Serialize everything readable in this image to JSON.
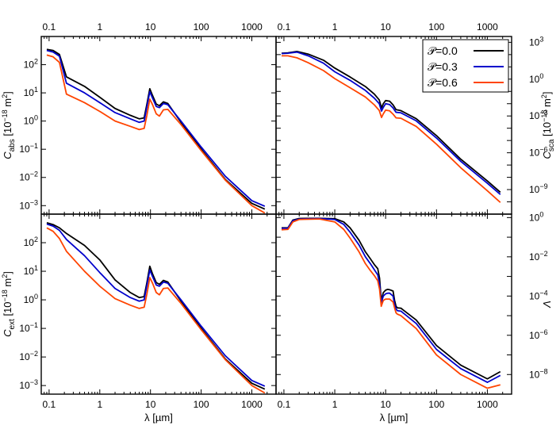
{
  "chart_data": {
    "type": "line",
    "x_scale": "log",
    "y_scale": "log",
    "xlim": [
      0.07,
      3000
    ],
    "top_tick_labels": [
      "0.1",
      "1",
      "10",
      "100",
      "1000"
    ],
    "bottom_tick_labels": [
      "0.1",
      "1",
      "10",
      "100",
      "1000"
    ],
    "bottom_xlabel": "λ [µm]",
    "series_names": [
      "𝒫=0.0",
      "𝒫=0.3",
      "𝒫=0.6"
    ],
    "colors": {
      "P0": "#000000",
      "P3": "#0000cc",
      "P6": "#ff4400"
    },
    "legend_placement": "top-right of upper-right panel",
    "panels": [
      {
        "id": "abs",
        "ylabel_main": "C",
        "ylabel_sub": "abs",
        "ylabel_unit": " [10",
        "ylabel_exp": "−18",
        "ylabel_unit2": " m",
        "ylabel_sq": "2",
        "ylabel_close": "]",
        "y_side": "left",
        "ylim": [
          0.0005,
          1000
        ],
        "yticks": [
          0.001,
          0.01,
          0.1,
          1,
          10,
          100
        ],
        "yticklabels": [
          "10",
          "10",
          "10",
          "10",
          "10",
          "10"
        ],
        "yticksup": [
          "−3",
          "−2",
          "−1",
          "0",
          "1",
          "2"
        ],
        "series": [
          {
            "name": "𝒫=0.0",
            "x": [
              0.09,
              0.12,
              0.16,
              0.22,
              0.5,
              1,
              2,
              4,
              6,
              7.5,
              8.5,
              9.7,
              11,
              13,
              15,
              18,
              22,
              40,
              100,
              300,
              1000,
              1800
            ],
            "y": [
              350,
              320,
              230,
              37,
              17,
              7,
              2.8,
              1.6,
              1.2,
              1.3,
              4,
              14,
              8,
              4,
              3.5,
              4.8,
              4.2,
              0.9,
              0.1,
              0.0085,
              0.0012,
              0.00075
            ]
          },
          {
            "name": "𝒫=0.3",
            "x": [
              0.09,
              0.12,
              0.16,
              0.22,
              0.5,
              1,
              2,
              4,
              6,
              7.5,
              8.5,
              9.7,
              11,
              13,
              15,
              18,
              22,
              40,
              100,
              300,
              1000,
              1800
            ],
            "y": [
              320,
              280,
              200,
              22,
              10,
              4.5,
              2,
              1.2,
              0.9,
              1,
              3.2,
              11,
              6.5,
              3.3,
              3,
              4.2,
              3.8,
              1,
              0.12,
              0.011,
              0.0015,
              0.00095
            ]
          },
          {
            "name": "𝒫=0.6",
            "x": [
              0.09,
              0.12,
              0.16,
              0.22,
              0.5,
              1,
              2,
              4,
              6,
              7.5,
              8.5,
              9.7,
              11,
              13,
              15,
              18,
              22,
              40,
              100,
              300,
              1000,
              1800
            ],
            "y": [
              220,
              190,
              120,
              9,
              4.5,
              2.2,
              1,
              0.65,
              0.5,
              0.55,
              1.6,
              6,
              3.8,
              1.8,
              1.5,
              2.5,
              2.6,
              0.75,
              0.09,
              0.008,
              0.001,
              0.00055
            ]
          }
        ]
      },
      {
        "id": "sca",
        "ylabel_main": "C",
        "ylabel_sub": "sca",
        "ylabel_unit": " [10",
        "ylabel_exp": "−18",
        "ylabel_unit2": " m",
        "ylabel_sq": "2",
        "ylabel_close": "]",
        "y_side": "right",
        "ylim": [
          1e-11,
          3000
        ],
        "yticks": [
          1e-09,
          1e-06,
          0.001,
          1,
          1000
        ],
        "yticklabels": [
          "10",
          "10",
          "10",
          "10",
          "10"
        ],
        "yticksup": [
          "−9",
          "−6",
          "−3",
          "0",
          "3"
        ],
        "series": [
          {
            "name": "𝒫=0.0",
            "x": [
              0.09,
              0.12,
              0.18,
              0.3,
              0.6,
              1,
              2,
              4,
              6,
              7.5,
              8.3,
              9,
              10,
              12,
              14,
              16,
              20,
              40,
              100,
              300,
              1000,
              1800
            ],
            "y": [
              130,
              140,
              180,
              110,
              35,
              8,
              1.5,
              0.25,
              0.06,
              0.02,
              0.0045,
              0.01,
              0.018,
              0.016,
              0.008,
              0.0033,
              0.0027,
              0.0006,
              2.5e-05,
              3e-07,
              5e-09,
              6e-10
            ]
          },
          {
            "name": "𝒫=0.3",
            "x": [
              0.09,
              0.12,
              0.18,
              0.3,
              0.6,
              1,
              2,
              4,
              6,
              7.5,
              8.3,
              9,
              10,
              12,
              14,
              16,
              20,
              40,
              100,
              300,
              1000,
              1800
            ],
            "y": [
              120,
              130,
              160,
              80,
              20,
              4,
              0.8,
              0.12,
              0.028,
              0.01,
              0.0025,
              0.005,
              0.01,
              0.0085,
              0.0045,
              0.002,
              0.0018,
              0.0004,
              1.6e-05,
              2e-07,
              3.3e-09,
              4e-10
            ]
          },
          {
            "name": "𝒫=0.6",
            "x": [
              0.09,
              0.12,
              0.18,
              0.3,
              0.6,
              1,
              2,
              4,
              6,
              7.5,
              8.3,
              9,
              10,
              12,
              14,
              16,
              20,
              40,
              100,
              300,
              1000,
              1800
            ],
            "y": [
              80,
              80,
              55,
              22,
              5,
              1.1,
              0.2,
              0.035,
              0.008,
              0.0028,
              0.00075,
              0.0015,
              0.003,
              0.0026,
              0.0014,
              0.0007,
              0.00065,
              0.00014,
              5e-06,
              6e-08,
              8e-10,
              9e-11
            ]
          }
        ]
      },
      {
        "id": "ext",
        "ylabel_main": "C",
        "ylabel_sub": "ext",
        "ylabel_unit": " [10",
        "ylabel_exp": "−18",
        "ylabel_unit2": " m",
        "ylabel_sq": "2",
        "ylabel_close": "]",
        "y_side": "left",
        "ylim": [
          0.0005,
          1000
        ],
        "yticks": [
          0.001,
          0.01,
          0.1,
          1,
          10,
          100
        ],
        "yticklabels": [
          "10",
          "10",
          "10",
          "10",
          "10",
          "10"
        ],
        "yticksup": [
          "−3",
          "−2",
          "−1",
          "0",
          "1",
          "2"
        ],
        "series": [
          {
            "name": "𝒫=0.0",
            "x": [
              0.09,
              0.12,
              0.16,
              0.22,
              0.5,
              1,
              2,
              4,
              6,
              7.5,
              8.5,
              9.7,
              11,
              13,
              15,
              18,
              22,
              40,
              100,
              300,
              1000,
              1800
            ],
            "y": [
              500,
              430,
              330,
              210,
              80,
              25,
              5,
              1.8,
              1.2,
              1.3,
              4,
              15,
              8,
              4,
              3.5,
              4.8,
              4.2,
              0.9,
              0.1,
              0.0085,
              0.0012,
              0.00075
            ]
          },
          {
            "name": "𝒫=0.3",
            "x": [
              0.09,
              0.12,
              0.16,
              0.22,
              0.5,
              1,
              2,
              4,
              6,
              7.5,
              8.5,
              9.7,
              11,
              13,
              15,
              18,
              22,
              40,
              100,
              300,
              1000,
              1800
            ],
            "y": [
              450,
              380,
              270,
              130,
              35,
              9,
              2.5,
              1.2,
              0.9,
              1,
              3.2,
              11,
              6.5,
              3.3,
              3,
              4.2,
              3.8,
              1,
              0.12,
              0.011,
              0.0015,
              0.00095
            ]
          },
          {
            "name": "𝒫=0.6",
            "x": [
              0.09,
              0.12,
              0.16,
              0.22,
              0.5,
              1,
              2,
              4,
              6,
              7.5,
              8.5,
              9.7,
              11,
              13,
              15,
              18,
              22,
              40,
              100,
              300,
              1000,
              1800
            ],
            "y": [
              330,
              250,
              140,
              50,
              10,
              3,
              1.1,
              0.65,
              0.5,
              0.55,
              1.6,
              6,
              3.8,
              1.8,
              1.5,
              2.5,
              2.6,
              0.75,
              0.09,
              0.008,
              0.001,
              0.00055
            ]
          }
        ]
      },
      {
        "id": "albedo",
        "ylabel_main": "Λ",
        "y_side": "right",
        "ylim": [
          1e-09,
          1.5
        ],
        "yticks": [
          1e-08,
          1e-06,
          0.0001,
          0.01,
          1
        ],
        "yticklabels": [
          "10",
          "10",
          "10",
          "10",
          "10"
        ],
        "yticksup": [
          "−8",
          "−6",
          "−4",
          "−2",
          "0"
        ],
        "series": [
          {
            "name": "𝒫=0.0",
            "x": [
              0.09,
              0.12,
              0.15,
              0.2,
              0.5,
              1,
              1.5,
              2,
              3,
              4,
              5,
              6,
              7,
              7.6,
              8.2,
              9,
              10,
              11,
              12,
              14,
              15,
              16,
              17,
              20,
              40,
              100,
              300,
              1000,
              1800
            ],
            "y": [
              0.3,
              0.3,
              0.75,
              0.9,
              0.92,
              0.88,
              0.6,
              0.3,
              0.07,
              0.018,
              0.008,
              0.004,
              0.0025,
              0.0008,
              6e-05,
              0.00015,
              0.0002,
              0.00022,
              0.00021,
              0.00018,
              6e-05,
              3e-05,
              2.5e-05,
              2.4e-05,
              6e-06,
              3e-07,
              3e-08,
              6e-09,
              1.4e-08
            ]
          },
          {
            "name": "𝒫=0.3",
            "x": [
              0.09,
              0.12,
              0.15,
              0.2,
              0.5,
              1,
              1.5,
              2,
              3,
              4,
              5,
              6,
              7,
              7.6,
              8.2,
              9,
              10,
              11,
              12,
              14,
              15,
              16,
              17,
              20,
              40,
              100,
              300,
              1000,
              1800
            ],
            "y": [
              0.28,
              0.29,
              0.7,
              0.85,
              0.9,
              0.8,
              0.45,
              0.18,
              0.04,
              0.01,
              0.0045,
              0.0022,
              0.0012,
              0.0004,
              4.5e-05,
              0.0001,
              0.00013,
              0.00014,
              0.00014,
              0.0001,
              3.8e-05,
              2.2e-05,
              1.8e-05,
              1.7e-05,
              4e-06,
              1.9e-07,
              2e-08,
              4e-09,
              9e-09
            ]
          },
          {
            "name": "𝒫=0.6",
            "x": [
              0.09,
              0.12,
              0.15,
              0.2,
              0.5,
              1,
              1.5,
              2,
              3,
              4,
              5,
              6,
              7,
              7.6,
              8.2,
              9,
              10,
              11,
              12,
              14,
              15,
              16,
              17,
              20,
              40,
              100,
              300,
              1000,
              1800
            ],
            "y": [
              0.24,
              0.25,
              0.6,
              0.8,
              0.85,
              0.6,
              0.25,
              0.09,
              0.018,
              0.0045,
              0.002,
              0.0011,
              0.0006,
              0.00022,
              3e-05,
              6e-05,
              7e-05,
              7e-05,
              7e-05,
              5e-05,
              2.5e-05,
              1.4e-05,
              1.2e-05,
              1e-05,
              2.2e-06,
              1e-07,
              1e-08,
              2e-09,
              3e-09
            ]
          }
        ]
      }
    ]
  }
}
